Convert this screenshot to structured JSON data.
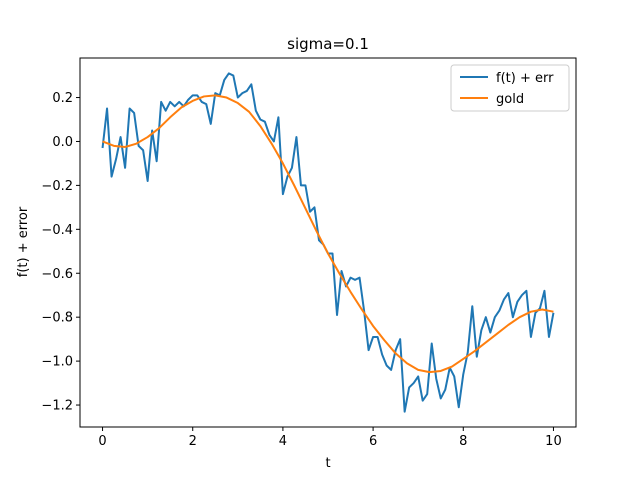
{
  "chart_data": {
    "type": "line",
    "title": "sigma=0.1",
    "xlabel": "t",
    "ylabel": "f(t) + error",
    "xlim": [
      -0.5,
      10.5
    ],
    "ylim": [
      -1.3,
      0.38
    ],
    "xticks": [
      0,
      2,
      4,
      6,
      8,
      10
    ],
    "yticks": [
      -1.2,
      -1.0,
      -0.8,
      -0.6,
      -0.4,
      -0.2,
      0.0,
      0.2
    ],
    "ytick_labels": [
      "−1.2",
      "−1.0",
      "−0.8",
      "−0.6",
      "−0.4",
      "−0.2",
      "0.0",
      "0.2"
    ],
    "grid": false,
    "legend": "top-right",
    "series": [
      {
        "name": "f(t) + err",
        "color": "#1f77b4",
        "x": [
          0.0,
          0.1,
          0.2,
          0.3,
          0.4,
          0.5,
          0.6,
          0.7,
          0.8,
          0.9,
          1.0,
          1.1,
          1.2,
          1.3,
          1.4,
          1.5,
          1.6,
          1.7,
          1.8,
          1.9,
          2.0,
          2.1,
          2.2,
          2.3,
          2.4,
          2.5,
          2.6,
          2.7,
          2.8,
          2.9,
          3.0,
          3.1,
          3.2,
          3.3,
          3.4,
          3.5,
          3.6,
          3.7,
          3.8,
          3.9,
          4.0,
          4.1,
          4.2,
          4.3,
          4.4,
          4.5,
          4.6,
          4.7,
          4.8,
          4.9,
          5.0,
          5.1,
          5.2,
          5.3,
          5.4,
          5.5,
          5.6,
          5.7,
          5.8,
          5.9,
          6.0,
          6.1,
          6.2,
          6.3,
          6.4,
          6.5,
          6.6,
          6.7,
          6.8,
          6.9,
          7.0,
          7.1,
          7.2,
          7.3,
          7.4,
          7.5,
          7.6,
          7.7,
          7.8,
          7.9,
          8.0,
          8.1,
          8.2,
          8.3,
          8.4,
          8.5,
          8.6,
          8.7,
          8.8,
          8.9,
          9.0,
          9.1,
          9.2,
          9.3,
          9.4,
          9.5,
          9.6,
          9.7,
          9.8,
          9.9,
          10.0
        ],
        "y": [
          -0.03,
          0.15,
          -0.16,
          -0.08,
          0.02,
          -0.12,
          0.15,
          0.13,
          -0.02,
          -0.04,
          -0.18,
          0.05,
          -0.09,
          0.18,
          0.14,
          0.18,
          0.16,
          0.18,
          0.16,
          0.19,
          0.21,
          0.21,
          0.18,
          0.17,
          0.08,
          0.22,
          0.21,
          0.28,
          0.31,
          0.3,
          0.2,
          0.22,
          0.23,
          0.26,
          0.14,
          0.1,
          0.09,
          0.03,
          0.0,
          0.11,
          -0.24,
          -0.16,
          -0.12,
          0.02,
          -0.2,
          -0.2,
          -0.32,
          -0.3,
          -0.45,
          -0.47,
          -0.51,
          -0.51,
          -0.79,
          -0.59,
          -0.66,
          -0.62,
          -0.63,
          -0.62,
          -0.77,
          -0.95,
          -0.89,
          -0.89,
          -0.97,
          -1.02,
          -1.04,
          -0.95,
          -0.9,
          -1.23,
          -1.12,
          -1.1,
          -1.07,
          -1.18,
          -1.15,
          -0.92,
          -1.08,
          -1.17,
          -1.13,
          -1.03,
          -1.07,
          -1.21,
          -1.06,
          -0.96,
          -0.75,
          -0.98,
          -0.86,
          -0.8,
          -0.87,
          -0.8,
          -0.77,
          -0.72,
          -0.69,
          -0.8,
          -0.73,
          -0.7,
          -0.68,
          -0.89,
          -0.78,
          -0.76,
          -0.68,
          -0.89,
          -0.78
        ]
      },
      {
        "name": "gold",
        "color": "#ff7f0e",
        "x": [
          0.0,
          0.25,
          0.5,
          0.75,
          1.0,
          1.25,
          1.5,
          1.75,
          2.0,
          2.25,
          2.5,
          2.75,
          3.0,
          3.25,
          3.5,
          3.75,
          4.0,
          4.25,
          4.5,
          4.75,
          5.0,
          5.25,
          5.5,
          5.75,
          6.0,
          6.25,
          6.5,
          6.75,
          7.0,
          7.25,
          7.5,
          7.75,
          8.0,
          8.25,
          8.5,
          8.75,
          9.0,
          9.25,
          9.5,
          9.75,
          10.0
        ],
        "y": [
          0.0,
          -0.02,
          -0.025,
          -0.01,
          0.02,
          0.06,
          0.11,
          0.155,
          0.185,
          0.205,
          0.21,
          0.2,
          0.175,
          0.135,
          0.07,
          -0.01,
          -0.1,
          -0.2,
          -0.305,
          -0.41,
          -0.51,
          -0.6,
          -0.685,
          -0.765,
          -0.84,
          -0.905,
          -0.965,
          -1.01,
          -1.04,
          -1.05,
          -1.045,
          -1.025,
          -0.99,
          -0.955,
          -0.915,
          -0.875,
          -0.835,
          -0.8,
          -0.775,
          -0.765,
          -0.775
        ]
      }
    ]
  }
}
